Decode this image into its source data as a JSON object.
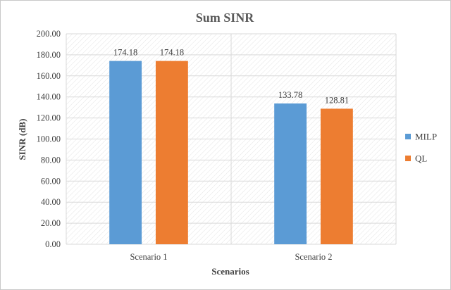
{
  "chart_data": {
    "type": "bar",
    "title": "Sum SINR",
    "xlabel": "Scenarios",
    "ylabel": "SINR (dB)",
    "categories": [
      "Scenario 1",
      "Scenario 2"
    ],
    "ylim": [
      0,
      200
    ],
    "yticks": [
      "0.00",
      "20.00",
      "40.00",
      "60.00",
      "80.00",
      "100.00",
      "120.00",
      "140.00",
      "160.00",
      "180.00",
      "200.00"
    ],
    "grid": true,
    "legend_position": "right",
    "series": [
      {
        "name": "MILP",
        "color": "#5b9bd5",
        "values": [
          174.18,
          133.78
        ],
        "labels": [
          "174.18",
          "133.78"
        ]
      },
      {
        "name": "QL",
        "color": "#ed7d31",
        "values": [
          174.18,
          128.81
        ],
        "labels": [
          "174.18",
          "128.81"
        ]
      }
    ]
  }
}
